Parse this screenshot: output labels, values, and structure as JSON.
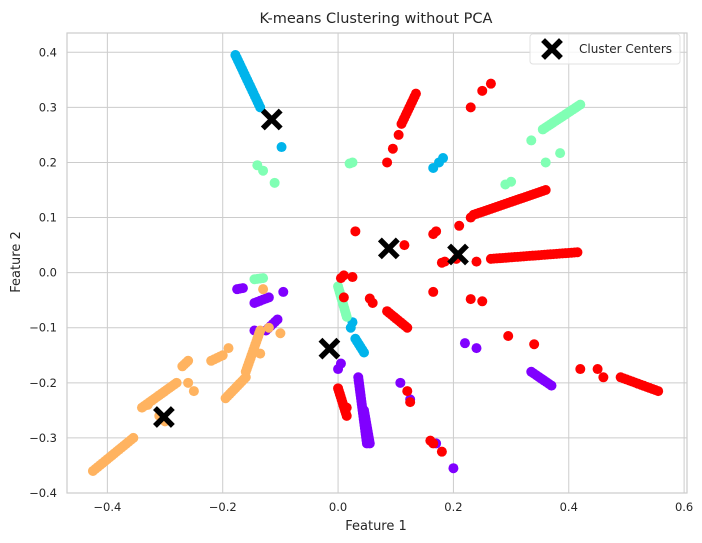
{
  "chart_data": {
    "type": "scatter",
    "title": "K-means Clustering without PCA",
    "xlabel": "Feature 1",
    "ylabel": "Feature 2",
    "xlim": [
      -0.47,
      0.605
    ],
    "ylim": [
      -0.4,
      0.435
    ],
    "xticks": [
      -0.4,
      -0.2,
      0.0,
      0.2,
      0.4,
      0.6
    ],
    "xtick_labels": [
      "−0.4",
      "−0.2",
      "0.0",
      "0.2",
      "0.4",
      "0.6"
    ],
    "yticks": [
      -0.4,
      -0.3,
      -0.2,
      -0.1,
      0.0,
      0.1,
      0.2,
      0.3,
      0.4
    ],
    "ytick_labels": [
      "−0.4",
      "−0.3",
      "−0.2",
      "−0.1",
      "0.0",
      "0.1",
      "0.2",
      "0.3",
      "0.4"
    ],
    "grid": true,
    "legend": {
      "position": "top-right",
      "entries": [
        "Cluster Centers"
      ]
    },
    "cluster_colors": [
      "#8000ff",
      "#00b4eb",
      "#80ffb4",
      "#ffb360",
      "#ff0000"
    ],
    "clusters": [
      {
        "color": "#8000ff",
        "segments": [
          [
            [
              -0.175,
              -0.03
            ],
            [
              -0.165,
              -0.028
            ]
          ],
          [
            [
              -0.145,
              -0.055
            ],
            [
              -0.12,
              -0.045
            ]
          ],
          [
            [
              -0.125,
              -0.105
            ],
            [
              -0.105,
              -0.085
            ]
          ],
          [
            [
              0.035,
              -0.19
            ],
            [
              0.05,
              -0.31
            ]
          ],
          [
            [
              0.045,
              -0.25
            ],
            [
              0.055,
              -0.31
            ]
          ],
          [
            [
              0.335,
              -0.18
            ],
            [
              0.37,
              -0.205
            ]
          ]
        ],
        "points": [
          [
            -0.095,
            -0.035
          ],
          [
            -0.145,
            -0.105
          ],
          [
            0.005,
            -0.165
          ],
          [
            0.0,
            -0.175
          ],
          [
            0.108,
            -0.2
          ],
          [
            0.125,
            -0.23
          ],
          [
            0.22,
            -0.128
          ],
          [
            0.24,
            -0.137
          ],
          [
            0.17,
            -0.31
          ],
          [
            0.2,
            -0.355
          ]
        ]
      },
      {
        "color": "#00b4eb",
        "segments": [
          [
            [
              -0.178,
              0.395
            ],
            [
              -0.135,
              0.3
            ]
          ],
          [
            [
              0.03,
              -0.12
            ],
            [
              0.045,
              -0.145
            ]
          ]
        ],
        "points": [
          [
            -0.098,
            0.228
          ],
          [
            0.165,
            0.19
          ],
          [
            0.175,
            0.2
          ],
          [
            0.182,
            0.208
          ],
          [
            0.025,
            -0.09
          ],
          [
            0.022,
            -0.1
          ]
        ]
      },
      {
        "color": "#80ffb4",
        "segments": [
          [
            [
              0.355,
              0.26
            ],
            [
              0.42,
              0.305
            ]
          ],
          [
            [
              0.0,
              -0.025
            ],
            [
              0.015,
              -0.08
            ]
          ],
          [
            [
              -0.145,
              -0.012
            ],
            [
              -0.13,
              -0.01
            ]
          ]
        ],
        "points": [
          [
            0.29,
            0.16
          ],
          [
            0.3,
            0.165
          ],
          [
            0.335,
            0.24
          ],
          [
            0.385,
            0.217
          ],
          [
            0.36,
            0.2
          ],
          [
            -0.14,
            0.195
          ],
          [
            -0.13,
            0.185
          ],
          [
            -0.11,
            0.163
          ],
          [
            0.02,
            0.198
          ],
          [
            0.025,
            0.2
          ]
        ]
      },
      {
        "color": "#ffb360",
        "segments": [
          [
            [
              -0.425,
              -0.36
            ],
            [
              -0.355,
              -0.3
            ]
          ],
          [
            [
              -0.34,
              -0.245
            ],
            [
              -0.28,
              -0.2
            ]
          ],
          [
            [
              -0.195,
              -0.228
            ],
            [
              -0.16,
              -0.19
            ]
          ],
          [
            [
              -0.16,
              -0.18
            ],
            [
              -0.135,
              -0.105
            ]
          ],
          [
            [
              -0.22,
              -0.16
            ],
            [
              -0.2,
              -0.15
            ]
          ],
          [
            [
              -0.27,
              -0.17
            ],
            [
              -0.26,
              -0.16
            ]
          ]
        ],
        "points": [
          [
            -0.3,
            -0.27
          ],
          [
            -0.31,
            -0.26
          ],
          [
            -0.25,
            -0.215
          ],
          [
            -0.19,
            -0.137
          ],
          [
            -0.135,
            -0.147
          ],
          [
            -0.12,
            -0.1
          ],
          [
            -0.1,
            -0.11
          ],
          [
            -0.13,
            -0.03
          ],
          [
            -0.33,
            -0.24
          ],
          [
            -0.26,
            -0.2
          ]
        ]
      },
      {
        "color": "#ff0000",
        "segments": [
          [
            [
              0.11,
              0.27
            ],
            [
              0.135,
              0.325
            ]
          ],
          [
            [
              0.235,
              0.105
            ],
            [
              0.36,
              0.15
            ]
          ],
          [
            [
              0.265,
              0.025
            ],
            [
              0.415,
              0.037
            ]
          ],
          [
            [
              0.085,
              -0.07
            ],
            [
              0.12,
              -0.1
            ]
          ],
          [
            [
              0.49,
              -0.19
            ],
            [
              0.555,
              -0.215
            ]
          ],
          [
            [
              0.0,
              -0.21
            ],
            [
              0.015,
              -0.26
            ]
          ]
        ],
        "points": [
          [
            0.265,
            0.343
          ],
          [
            0.25,
            0.33
          ],
          [
            0.23,
            0.3
          ],
          [
            0.105,
            0.25
          ],
          [
            0.095,
            0.225
          ],
          [
            0.085,
            0.2
          ],
          [
            0.23,
            0.1
          ],
          [
            0.21,
            0.085
          ],
          [
            0.17,
            0.075
          ],
          [
            0.165,
            0.07
          ],
          [
            0.03,
            0.075
          ],
          [
            0.115,
            0.05
          ],
          [
            0.18,
            0.018
          ],
          [
            0.185,
            0.02
          ],
          [
            0.205,
            0.025
          ],
          [
            0.24,
            0.02
          ],
          [
            0.01,
            -0.005
          ],
          [
            0.025,
            -0.008
          ],
          [
            0.005,
            -0.01
          ],
          [
            0.01,
            -0.045
          ],
          [
            0.055,
            -0.047
          ],
          [
            0.06,
            -0.055
          ],
          [
            0.23,
            -0.048
          ],
          [
            0.25,
            -0.052
          ],
          [
            0.165,
            -0.035
          ],
          [
            0.295,
            -0.115
          ],
          [
            0.34,
            -0.13
          ],
          [
            0.42,
            -0.175
          ],
          [
            0.45,
            -0.175
          ],
          [
            0.46,
            -0.19
          ],
          [
            0.12,
            -0.215
          ],
          [
            0.125,
            -0.235
          ],
          [
            0.015,
            -0.245
          ],
          [
            0.16,
            -0.305
          ],
          [
            0.165,
            -0.31
          ],
          [
            0.18,
            -0.325
          ]
        ]
      }
    ],
    "centers": [
      [
        -0.115,
        0.278
      ],
      [
        0.088,
        0.044
      ],
      [
        0.208,
        0.033
      ],
      [
        -0.015,
        -0.138
      ],
      [
        -0.302,
        -0.262
      ],
      [
        0.375,
        0.4
      ]
    ]
  }
}
